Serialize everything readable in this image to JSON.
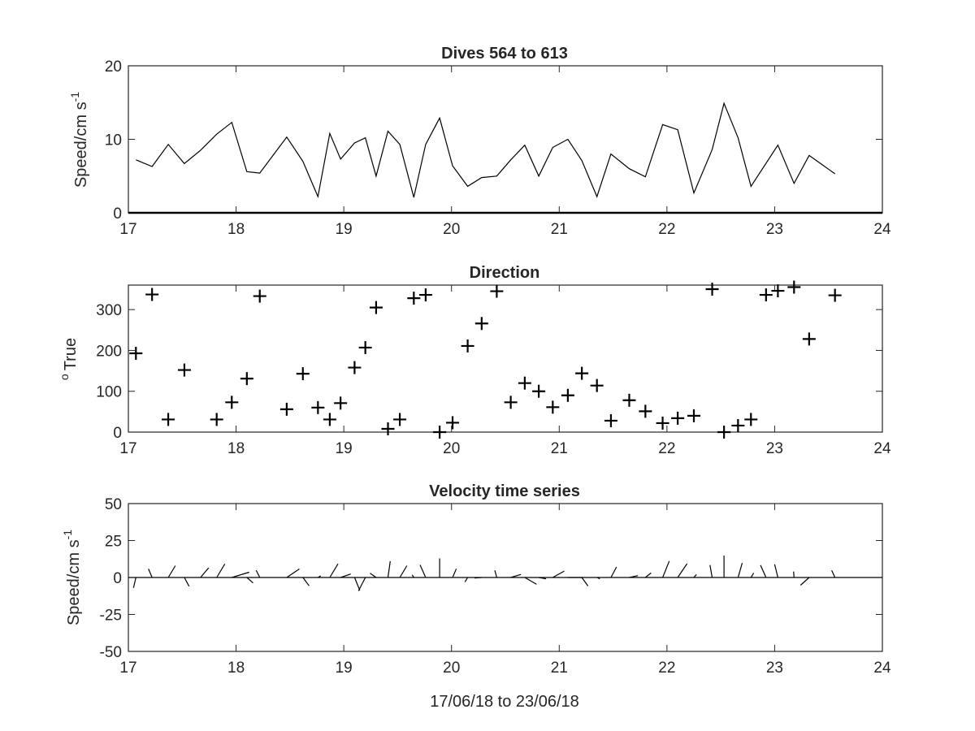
{
  "chart_data": [
    {
      "type": "line",
      "title": "Dives 564 to 613",
      "ylabel": "Speed/cm s",
      "ylabel_sup": "-1",
      "xlabel": "",
      "xlim": [
        17,
        24
      ],
      "ylim": [
        0,
        20
      ],
      "xticks": [
        "17",
        "18",
        "19",
        "20",
        "21",
        "22",
        "23",
        "24"
      ],
      "yticks": [
        "0",
        "10",
        "20"
      ],
      "grid": false,
      "series": [
        {
          "x": [
            17.07,
            17.22,
            17.37,
            17.52,
            17.67,
            17.82,
            17.96,
            18.1,
            18.22,
            18.47,
            18.62,
            18.76,
            18.87,
            18.97,
            19.1,
            19.2,
            19.3,
            19.41,
            19.52,
            19.65,
            19.76,
            19.89,
            20.01,
            20.15,
            20.28,
            20.42,
            20.55,
            20.68,
            20.81,
            20.94,
            21.08,
            21.21,
            21.35,
            21.48,
            21.65,
            21.8,
            21.96,
            22.1,
            22.25,
            22.42,
            22.53,
            22.66,
            22.78,
            23.03,
            23.18,
            23.32,
            23.56
          ],
          "y": [
            7.2,
            6.3,
            9.3,
            6.7,
            8.5,
            10.7,
            12.3,
            5.6,
            5.4,
            10.3,
            7.0,
            2.2,
            10.8,
            7.3,
            9.5,
            10.2,
            5.0,
            11.1,
            9.3,
            2.1,
            9.3,
            12.9,
            6.4,
            3.6,
            4.8,
            5.0,
            7.2,
            9.2,
            5.0,
            8.9,
            10.0,
            7.1,
            2.2,
            8.0,
            6.0,
            4.9,
            12.0,
            11.3,
            2.7,
            8.6,
            14.9,
            10.2,
            3.6,
            9.2,
            4.0,
            7.8,
            5.3
          ]
        }
      ]
    },
    {
      "type": "scatter",
      "title": "Direction",
      "ylabel": "True",
      "ylabel_prefix_sup": "o",
      "xlabel": "",
      "xlim": [
        17,
        24
      ],
      "ylim": [
        0,
        360
      ],
      "xticks": [
        "17",
        "18",
        "19",
        "20",
        "21",
        "22",
        "23",
        "24"
      ],
      "yticks": [
        "0",
        "100",
        "200",
        "300"
      ],
      "marker": "+",
      "grid": false,
      "series": [
        {
          "x": [
            17.07,
            17.22,
            17.37,
            17.52,
            17.82,
            17.96,
            18.1,
            18.22,
            18.47,
            18.62,
            18.76,
            18.87,
            18.97,
            19.1,
            19.2,
            19.3,
            19.41,
            19.52,
            19.65,
            19.76,
            19.89,
            20.01,
            20.15,
            20.28,
            20.42,
            20.55,
            20.68,
            20.81,
            20.94,
            21.08,
            21.21,
            21.35,
            21.48,
            21.65,
            21.8,
            21.96,
            22.1,
            22.25,
            22.42,
            22.53,
            22.66,
            22.78,
            22.92,
            23.03,
            23.18,
            23.32,
            23.56
          ],
          "y": [
            193,
            337,
            31,
            152,
            31,
            73,
            131,
            333,
            56,
            143,
            60,
            31,
            71,
            158,
            207,
            305,
            8,
            31,
            328,
            336,
            0,
            23,
            211,
            266,
            345,
            73,
            120,
            100,
            61,
            90,
            144,
            114,
            28,
            78,
            51,
            22,
            34,
            40,
            350,
            0,
            16,
            31,
            336,
            346,
            355,
            228,
            335
          ]
        }
      ]
    },
    {
      "type": "quiver",
      "title": "Velocity time series",
      "ylabel": "Speed/cm s",
      "ylabel_sup": "-1",
      "xlabel": "17/06/18 to 23/06/18",
      "xlim": [
        17,
        24
      ],
      "ylim": [
        -50,
        50
      ],
      "xticks": [
        "17",
        "18",
        "19",
        "20",
        "21",
        "22",
        "23",
        "24"
      ],
      "yticks": [
        "-50",
        "-25",
        "0",
        "25",
        "50"
      ],
      "grid": false,
      "note_units": "sticks start at (time, 0); components u,v in cm/s derived from speed and direction",
      "series": [
        {
          "x": [
            17.07,
            17.22,
            17.37,
            17.52,
            17.67,
            17.82,
            17.96,
            18.1,
            18.22,
            18.47,
            18.62,
            18.76,
            18.87,
            18.97,
            19.1,
            19.2,
            19.3,
            19.41,
            19.52,
            19.65,
            19.76,
            19.89,
            20.01,
            20.15,
            20.28,
            20.42,
            20.55,
            20.68,
            20.81,
            20.94,
            21.08,
            21.21,
            21.35,
            21.48,
            21.65,
            21.8,
            21.96,
            22.1,
            22.25,
            22.42,
            22.53,
            22.66,
            22.78,
            22.92,
            23.03,
            23.18,
            23.32,
            23.56
          ],
          "speed": [
            7.2,
            6.3,
            9.3,
            6.7,
            8.5,
            10.7,
            12.3,
            5.6,
            5.4,
            10.3,
            7.0,
            2.2,
            10.8,
            7.3,
            9.5,
            10.2,
            5.0,
            11.1,
            9.3,
            2.1,
            9.3,
            12.9,
            6.4,
            3.6,
            4.8,
            5.0,
            7.2,
            9.2,
            5.0,
            8.9,
            10.0,
            7.1,
            2.2,
            8.0,
            6.0,
            4.9,
            12.0,
            11.3,
            2.7,
            8.6,
            14.9,
            10.2,
            3.6,
            9.2,
            9.2,
            4.0,
            7.8,
            5.3
          ],
          "direction": [
            193,
            337,
            31,
            152,
            40,
            31,
            73,
            131,
            333,
            56,
            143,
            60,
            31,
            71,
            158,
            207,
            305,
            8,
            31,
            328,
            336,
            0,
            23,
            211,
            266,
            345,
            73,
            120,
            100,
            61,
            90,
            144,
            114,
            28,
            78,
            51,
            22,
            34,
            40,
            350,
            0,
            16,
            31,
            336,
            346,
            355,
            228,
            335
          ]
        }
      ]
    }
  ]
}
